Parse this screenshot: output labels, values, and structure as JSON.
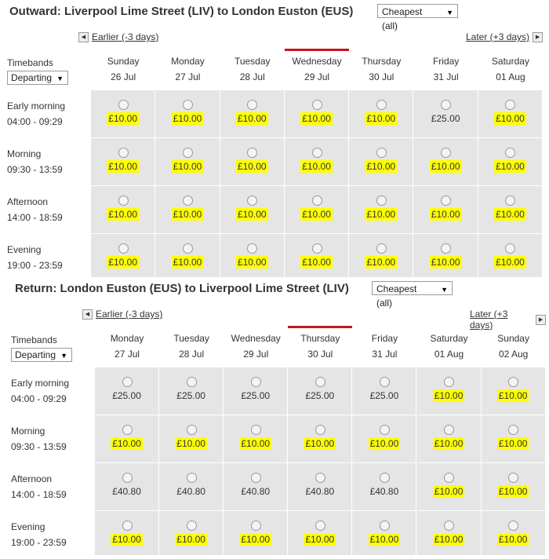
{
  "outward": {
    "title": "Outward: Liverpool Lime Street (LIV) to London Euston (EUS)",
    "sort": "Cheapest (all)",
    "earlier": "Earlier (-3 days)",
    "later": "Later (+3 days)",
    "timebands_label": "Timebands",
    "timebands_select": "Departing",
    "days": [
      {
        "name": "Sunday",
        "date": "26 Jul"
      },
      {
        "name": "Monday",
        "date": "27 Jul"
      },
      {
        "name": "Tuesday",
        "date": "28 Jul"
      },
      {
        "name": "Wednesday",
        "date": "29 Jul"
      },
      {
        "name": "Thursday",
        "date": "30 Jul"
      },
      {
        "name": "Friday",
        "date": "31 Jul"
      },
      {
        "name": "Saturday",
        "date": "01 Aug"
      }
    ],
    "selected_day_index": 3,
    "rows": [
      {
        "label": "Early morning",
        "time": "04:00 - 09:29",
        "prices": [
          "£10.00",
          "£10.00",
          "£10.00",
          "£10.00",
          "£10.00",
          "£25.00",
          "£10.00"
        ],
        "cheapest": [
          true,
          true,
          true,
          true,
          true,
          false,
          true
        ]
      },
      {
        "label": "Morning",
        "time": "09:30 - 13:59",
        "prices": [
          "£10.00",
          "£10.00",
          "£10.00",
          "£10.00",
          "£10.00",
          "£10.00",
          "£10.00"
        ],
        "cheapest": [
          true,
          true,
          true,
          true,
          true,
          true,
          true
        ]
      },
      {
        "label": "Afternoon",
        "time": "14:00 - 18:59",
        "prices": [
          "£10.00",
          "£10.00",
          "£10.00",
          "£10.00",
          "£10.00",
          "£10.00",
          "£10.00"
        ],
        "cheapest": [
          true,
          true,
          true,
          true,
          true,
          true,
          true
        ]
      },
      {
        "label": "Evening",
        "time": "19:00 - 23:59",
        "prices": [
          "£10.00",
          "£10.00",
          "£10.00",
          "£10.00",
          "£10.00",
          "£10.00",
          "£10.00"
        ],
        "cheapest": [
          true,
          true,
          true,
          true,
          true,
          true,
          true
        ]
      }
    ]
  },
  "return": {
    "title": "Return: London Euston (EUS) to Liverpool Lime Street (LIV)",
    "sort": "Cheapest (all)",
    "earlier": "Earlier (-3 days)",
    "later": "Later (+3 days)",
    "timebands_label": "Timebands",
    "timebands_select": "Departing",
    "days": [
      {
        "name": "Monday",
        "date": "27 Jul"
      },
      {
        "name": "Tuesday",
        "date": "28 Jul"
      },
      {
        "name": "Wednesday",
        "date": "29 Jul"
      },
      {
        "name": "Thursday",
        "date": "30 Jul"
      },
      {
        "name": "Friday",
        "date": "31 Jul"
      },
      {
        "name": "Saturday",
        "date": "01 Aug"
      },
      {
        "name": "Sunday",
        "date": "02 Aug"
      }
    ],
    "selected_day_index": 3,
    "rows": [
      {
        "label": "Early morning",
        "time": "04:00 - 09:29",
        "prices": [
          "£25.00",
          "£25.00",
          "£25.00",
          "£25.00",
          "£25.00",
          "£10.00",
          "£10.00"
        ],
        "cheapest": [
          false,
          false,
          false,
          false,
          false,
          true,
          true
        ]
      },
      {
        "label": "Morning",
        "time": "09:30 - 13:59",
        "prices": [
          "£10.00",
          "£10.00",
          "£10.00",
          "£10.00",
          "£10.00",
          "£10.00",
          "£10.00"
        ],
        "cheapest": [
          true,
          true,
          true,
          true,
          true,
          true,
          true
        ]
      },
      {
        "label": "Afternoon",
        "time": "14:00 - 18:59",
        "prices": [
          "£40.80",
          "£40.80",
          "£40.80",
          "£40.80",
          "£40.80",
          "£10.00",
          "£10.00"
        ],
        "cheapest": [
          false,
          false,
          false,
          false,
          false,
          true,
          true
        ]
      },
      {
        "label": "Evening",
        "time": "19:00 - 23:59",
        "prices": [
          "£10.00",
          "£10.00",
          "£10.00",
          "£10.00",
          "£10.00",
          "£10.00",
          "£10.00"
        ],
        "cheapest": [
          true,
          true,
          true,
          true,
          true,
          true,
          true
        ]
      }
    ]
  },
  "colors": {
    "cheapest_highlight": "#ffff00",
    "selected_day_marker": "#c4161c",
    "grid_bg": "#e5e5e5"
  }
}
